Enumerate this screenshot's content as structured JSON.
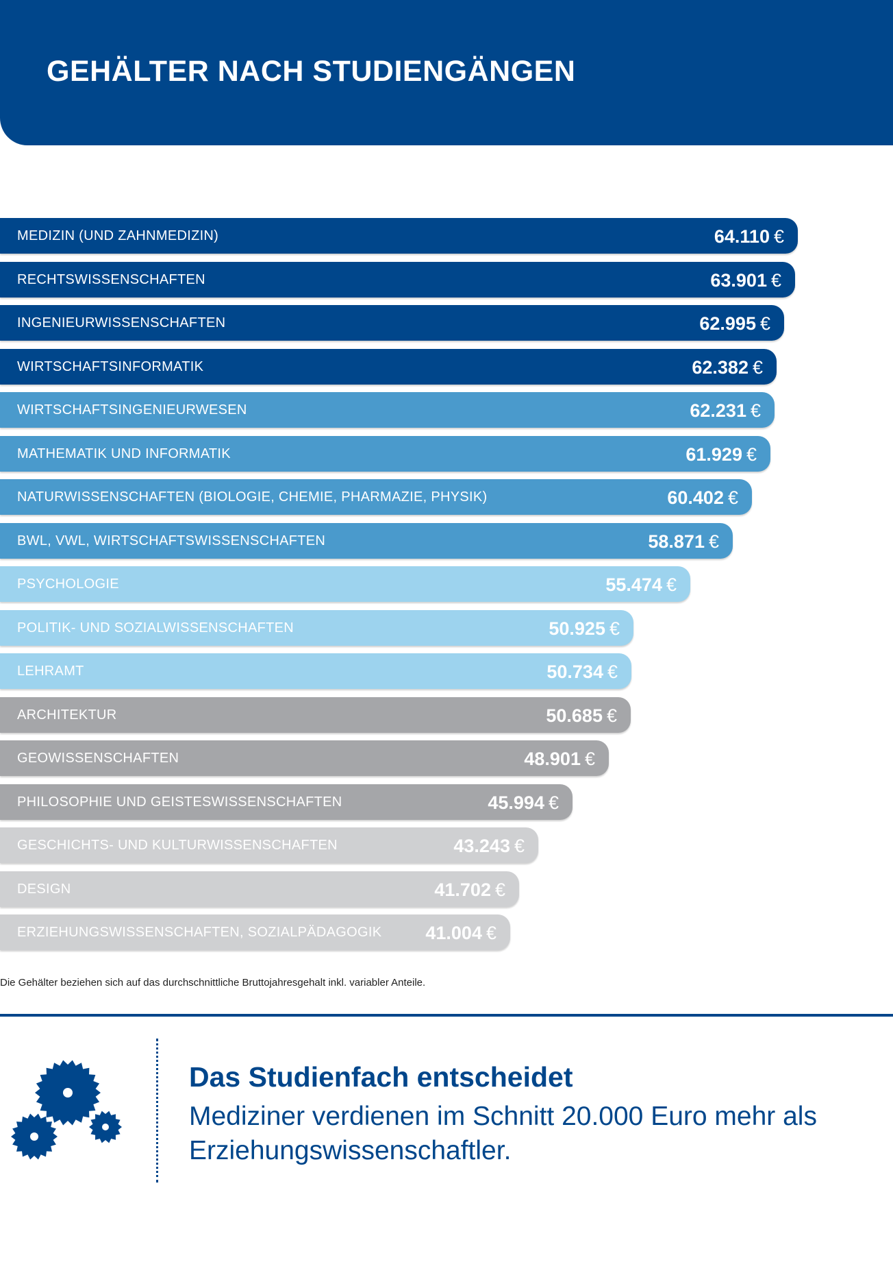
{
  "header": {
    "title": "GEHÄLTER NACH STUDIENGÄNGEN"
  },
  "colors": {
    "dark_blue": "#00468b",
    "mid_blue": "#4a9acc",
    "light_blue": "#9dd3ee",
    "gray": "#a5a6a9",
    "light_gray": "#cfd0d2"
  },
  "chart_data": {
    "type": "bar",
    "orientation": "horizontal",
    "title": "GEHÄLTER NACH STUDIENGÄNGEN",
    "unit": "€",
    "categories": [
      "MEDIZIN (UND ZAHNMEDIZIN)",
      "RECHTSWISSENSCHAFTEN",
      "INGENIEURWISSENSCHAFTEN",
      "WIRTSCHAFTSINFORMATIK",
      "WIRTSCHAFTSINGENIEURWESEN",
      "MATHEMATIK UND INFORMATIK",
      "NATURWISSENSCHAFTEN (BIOLOGIE, CHEMIE, PHARMAZIE, PHYSIK)",
      "BWL, VWL, WIRTSCHAFTSWISSENSCHAFTEN",
      "PSYCHOLOGIE",
      "POLITIK- UND SOZIALWISSENSCHAFTEN",
      "LEHRAMT",
      "ARCHITEKTUR",
      "GEOWISSENSCHAFTEN",
      "PHILOSOPHIE UND GEISTESWISSENSCHAFTEN",
      "GESCHICHTS- UND KULTURWISSENSCHAFTEN",
      "DESIGN",
      "ERZIEHUNGSWISSENSCHAFTEN, SOZIALPÄDAGOGIK"
    ],
    "values": [
      64110,
      63901,
      62995,
      62382,
      62231,
      61929,
      60402,
      58871,
      55474,
      50925,
      50734,
      50685,
      48901,
      45994,
      43243,
      41702,
      41004
    ],
    "value_labels": [
      "64.110",
      "63.901",
      "62.995",
      "62.382",
      "62.231",
      "61.929",
      "60.402",
      "58.871",
      "55.474",
      "50.925",
      "50.734",
      "50.685",
      "48.901",
      "45.994",
      "43.243",
      "41.702",
      "41.004"
    ],
    "bar_colors": [
      "#00468b",
      "#00468b",
      "#00468b",
      "#00468b",
      "#4a9acc",
      "#4a9acc",
      "#4a9acc",
      "#4a9acc",
      "#9dd3ee",
      "#9dd3ee",
      "#9dd3ee",
      "#a5a6a9",
      "#a5a6a9",
      "#a5a6a9",
      "#cfd0d2",
      "#cfd0d2",
      "#cfd0d2"
    ],
    "grid": false,
    "legend": "none"
  },
  "note": "Die Gehälter beziehen sich auf das durchschnittliche Bruttojahresgehalt inkl. variabler Anteile.",
  "callout": {
    "icon": "gears-icon",
    "headline": "Das Studienfach entscheidet",
    "body": "Mediziner verdienen im Schnitt 20.000 Euro mehr als Erziehungswissenschaftler."
  }
}
